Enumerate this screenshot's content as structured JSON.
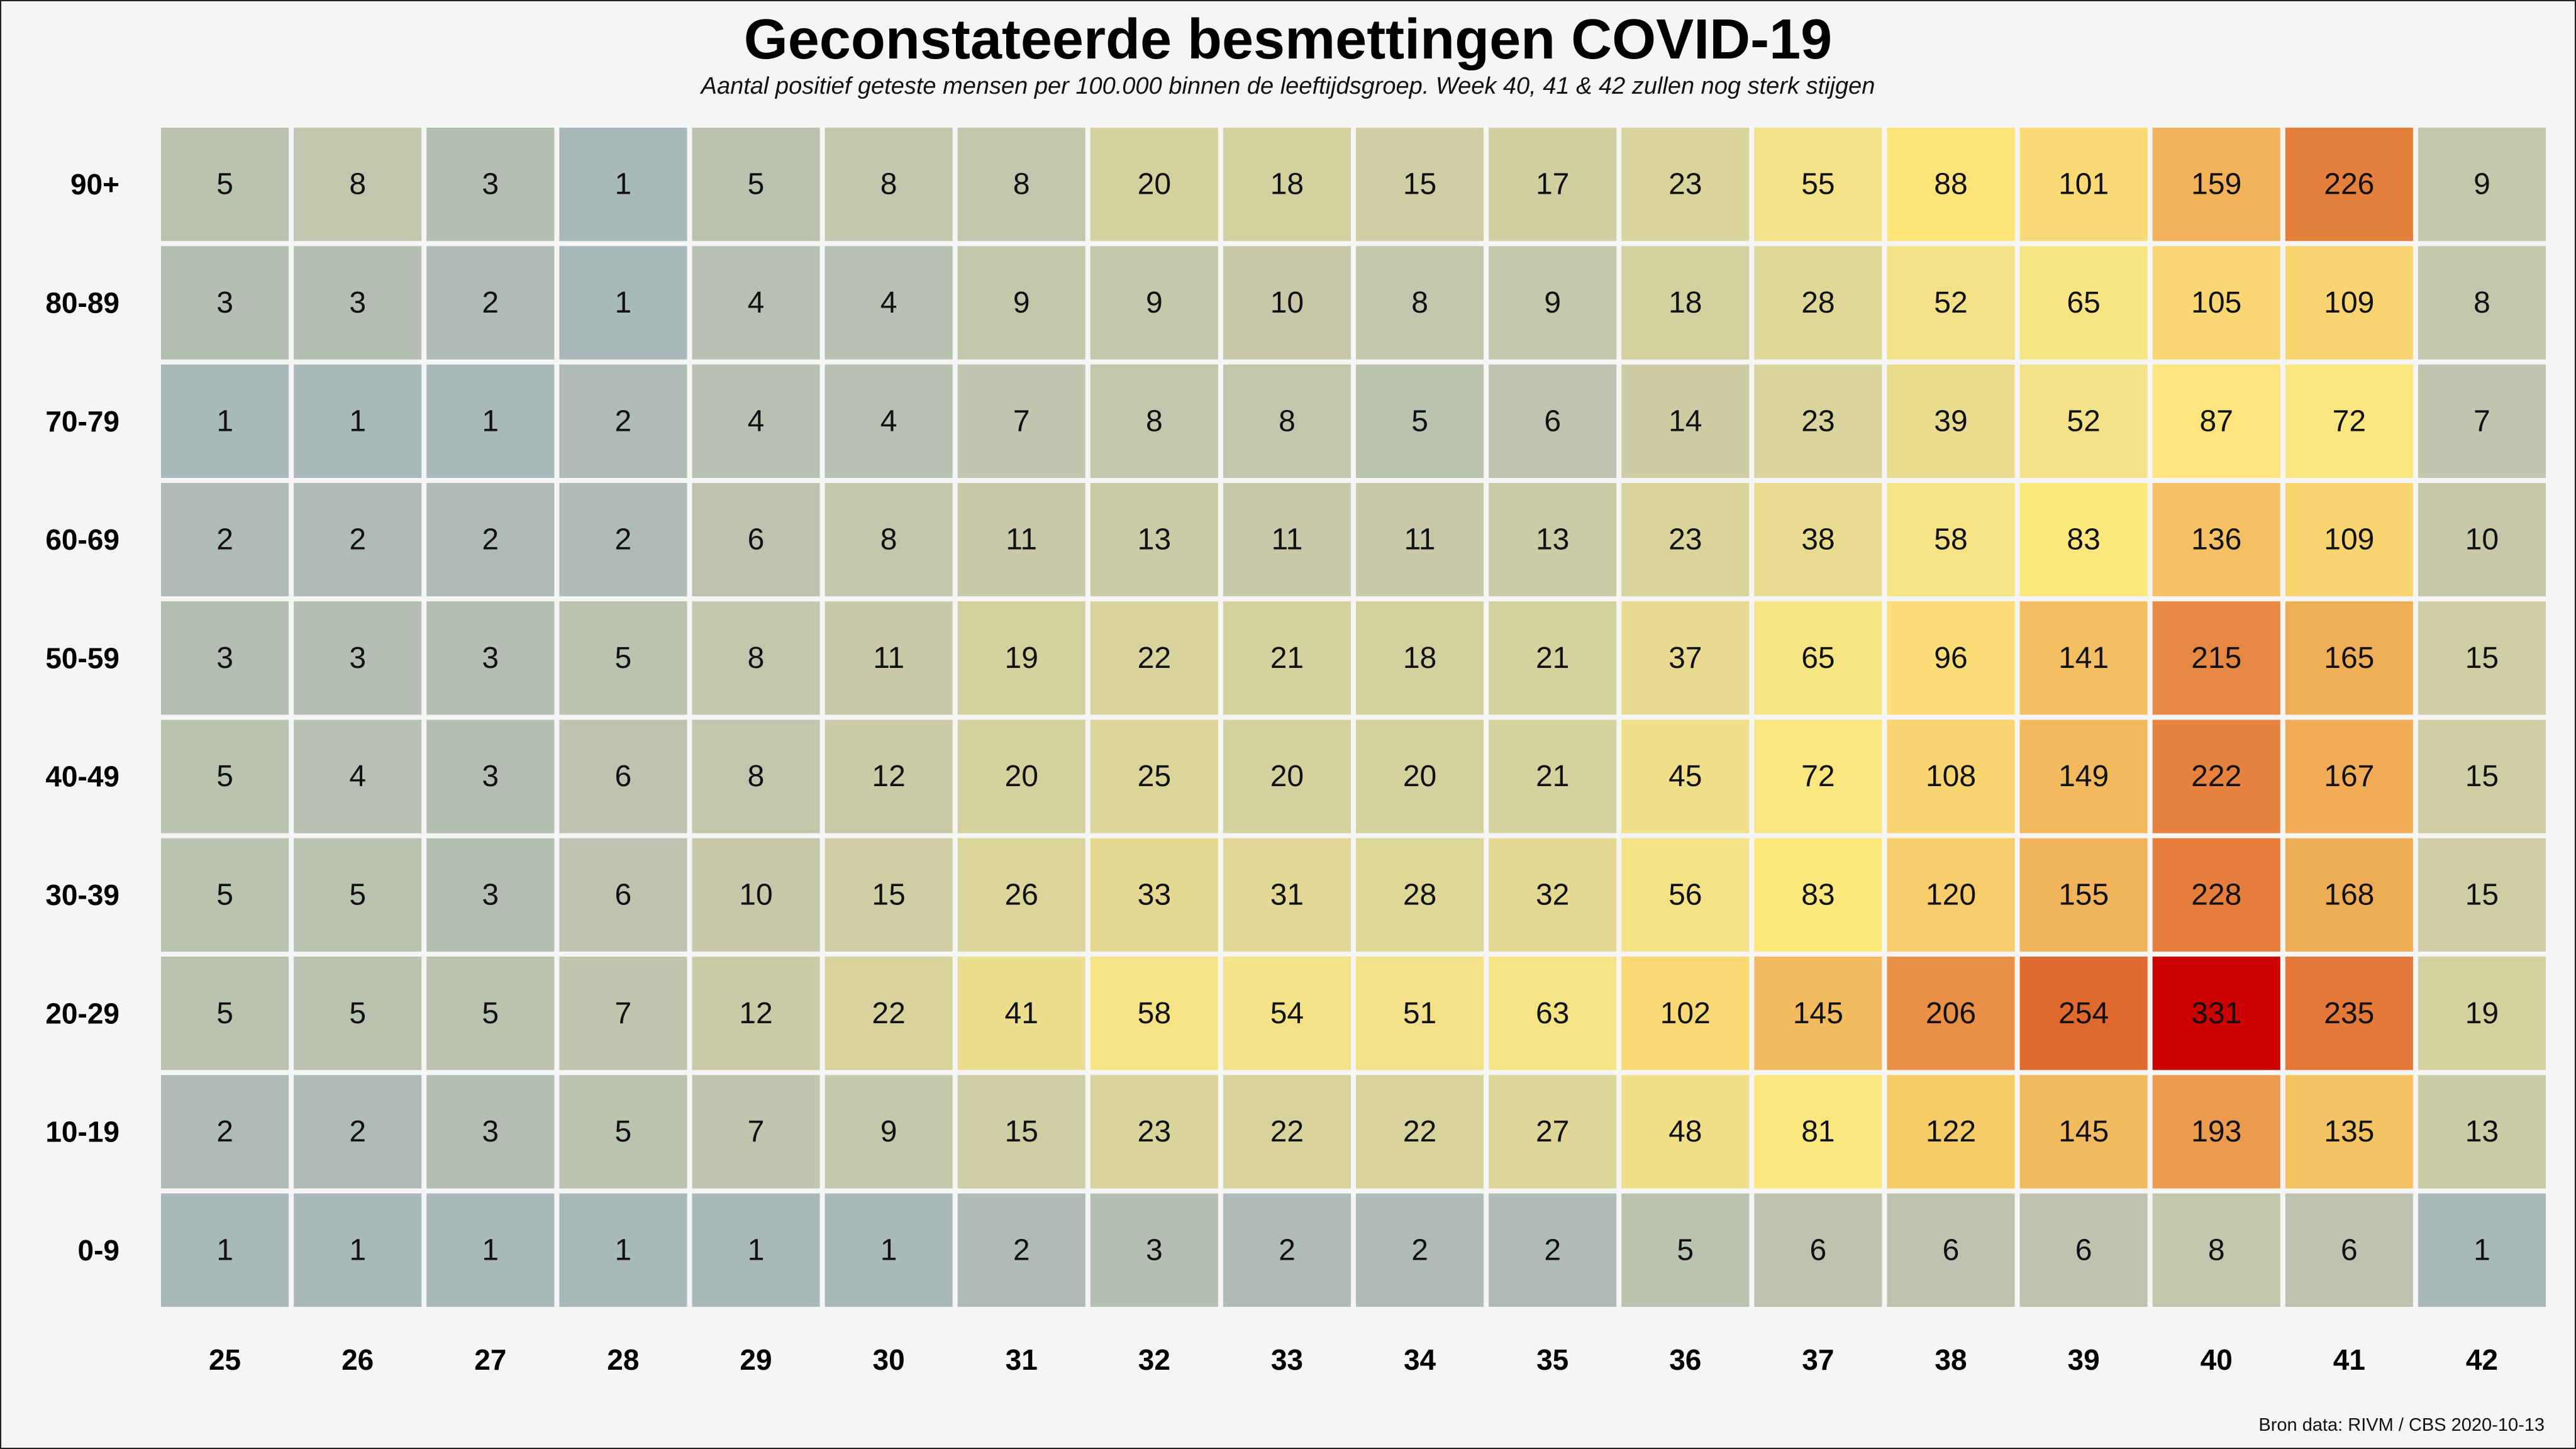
{
  "chart_data": {
    "type": "heatmap",
    "title": "Geconstateerde besmettingen COVID-19",
    "subtitle": "Aantal positief geteste mensen per 100.000 binnen de leeftijdsgroep. Week 40, 41 & 42 zullen nog sterk stijgen",
    "xlabel": "",
    "ylabel": "",
    "x": [
      "25",
      "26",
      "27",
      "28",
      "29",
      "30",
      "31",
      "32",
      "33",
      "34",
      "35",
      "36",
      "37",
      "38",
      "39",
      "40",
      "41",
      "42"
    ],
    "y": [
      "90+",
      "80-89",
      "70-79",
      "60-69",
      "50-59",
      "40-49",
      "30-39",
      "20-29",
      "10-19",
      "0-9"
    ],
    "values": [
      [
        5,
        8,
        3,
        1,
        5,
        8,
        8,
        20,
        18,
        15,
        17,
        23,
        55,
        88,
        101,
        159,
        226,
        9
      ],
      [
        3,
        3,
        2,
        1,
        4,
        4,
        9,
        9,
        10,
        8,
        9,
        18,
        28,
        52,
        65,
        105,
        109,
        8
      ],
      [
        1,
        1,
        1,
        2,
        4,
        4,
        7,
        8,
        8,
        5,
        6,
        14,
        23,
        39,
        52,
        87,
        72,
        7
      ],
      [
        2,
        2,
        2,
        2,
        6,
        8,
        11,
        13,
        11,
        11,
        13,
        23,
        38,
        58,
        83,
        136,
        109,
        10
      ],
      [
        3,
        3,
        3,
        5,
        8,
        11,
        19,
        22,
        21,
        18,
        21,
        37,
        65,
        96,
        141,
        215,
        165,
        15
      ],
      [
        5,
        4,
        3,
        6,
        8,
        12,
        20,
        25,
        20,
        20,
        21,
        45,
        72,
        108,
        149,
        222,
        167,
        15
      ],
      [
        5,
        5,
        3,
        6,
        10,
        15,
        26,
        33,
        31,
        28,
        32,
        56,
        83,
        120,
        155,
        228,
        168,
        15
      ],
      [
        5,
        5,
        5,
        7,
        12,
        22,
        41,
        58,
        54,
        51,
        63,
        102,
        145,
        206,
        254,
        331,
        235,
        19
      ],
      [
        2,
        2,
        3,
        5,
        7,
        9,
        15,
        23,
        22,
        22,
        27,
        48,
        81,
        122,
        145,
        193,
        135,
        13
      ],
      [
        1,
        1,
        1,
        1,
        1,
        1,
        2,
        3,
        2,
        2,
        2,
        5,
        6,
        6,
        6,
        8,
        6,
        1
      ]
    ],
    "color_scale": [
      "#9ab0be",
      "#bcc2b0",
      "#d6d29e",
      "#f0e08a",
      "#fde87e",
      "#f5c766",
      "#eda050",
      "#e06a30",
      "#cc0000"
    ],
    "grid": false,
    "legend": "none"
  },
  "source": "Bron data: RIVM / CBS  2020-10-13"
}
